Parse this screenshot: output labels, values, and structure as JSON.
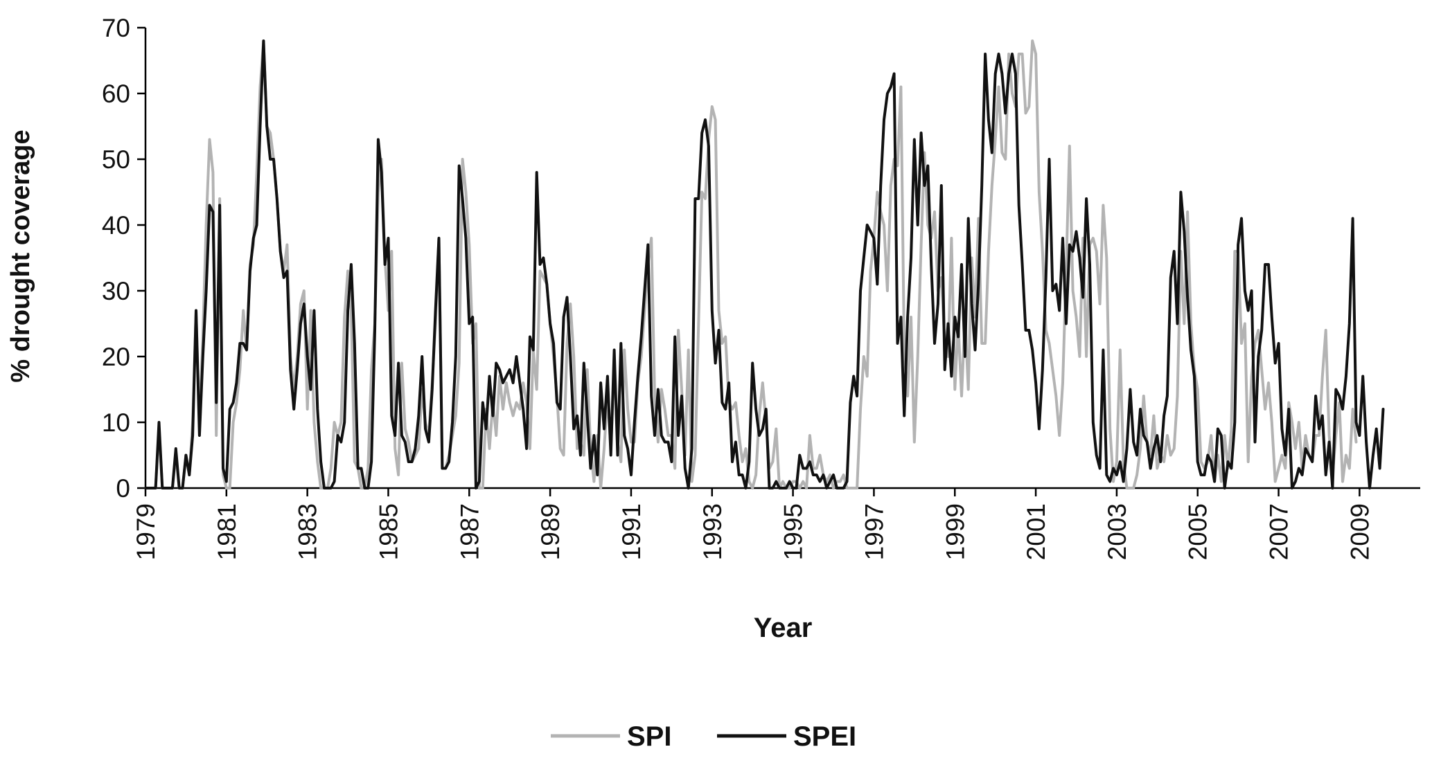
{
  "chart_data": {
    "type": "line",
    "title": "",
    "xlabel": "Year",
    "ylabel": "% drought coverage",
    "xlim": [
      1979,
      2010.5
    ],
    "ylim": [
      0,
      70
    ],
    "y_ticks": [
      "0",
      "10",
      "20",
      "30",
      "40",
      "50",
      "60",
      "70"
    ],
    "x_ticks": [
      "1979",
      "1981",
      "1983",
      "1985",
      "1987",
      "1989",
      "1991",
      "1993",
      "1995",
      "1997",
      "1999",
      "2001",
      "2003",
      "2005",
      "2007",
      "2009"
    ],
    "grid": false,
    "legend_position": "bottom-center",
    "x_step": 0.0833333,
    "series": [
      {
        "name": "SPI",
        "color": "#b3b3b3",
        "values": [
          0,
          0,
          0,
          0,
          9,
          0,
          0,
          0,
          0,
          5,
          0,
          0,
          5,
          2,
          10,
          27,
          10,
          23,
          40,
          53,
          48,
          8,
          44,
          2,
          0,
          0,
          10,
          13,
          18,
          27,
          21,
          34,
          37,
          48,
          61,
          68,
          55,
          54,
          50,
          44,
          36,
          33,
          37,
          20,
          15,
          20,
          28,
          30,
          12,
          27,
          10,
          4,
          0,
          0,
          0,
          3,
          10,
          8,
          10,
          26,
          33,
          27,
          4,
          3,
          0,
          0,
          3,
          18,
          25,
          45,
          50,
          35,
          27,
          36,
          6,
          2,
          19,
          9,
          7,
          4,
          5,
          6,
          15,
          10,
          8,
          16,
          25,
          38,
          3,
          3,
          5,
          8,
          11,
          19,
          50,
          45,
          37,
          22,
          25,
          0,
          0,
          12,
          6,
          13,
          8,
          17,
          12,
          16,
          13,
          11,
          13,
          12,
          16,
          13,
          6,
          21,
          15,
          33,
          32,
          31,
          25,
          20,
          14,
          6,
          5,
          22,
          28,
          20,
          6,
          7,
          5,
          18,
          6,
          1,
          8,
          0,
          6,
          14,
          6,
          19,
          7,
          4,
          21,
          12,
          7,
          7,
          16,
          20,
          27,
          34,
          38,
          14,
          7,
          15,
          12,
          8,
          8,
          3,
          24,
          15,
          5,
          21,
          1,
          5,
          25,
          45,
          44,
          53,
          58,
          56,
          27,
          22,
          23,
          13,
          12,
          13,
          8,
          4,
          6,
          1,
          0,
          2,
          11,
          16,
          10,
          3,
          4,
          9,
          0,
          1,
          0,
          0,
          1,
          1,
          0,
          1,
          0,
          8,
          3,
          3,
          5,
          2,
          1,
          2,
          0,
          1,
          1,
          2,
          0,
          0,
          0,
          0,
          12,
          20,
          17,
          33,
          38,
          45,
          42,
          40,
          30,
          46,
          50,
          49,
          61,
          21,
          14,
          26,
          7,
          20,
          37,
          51,
          40,
          38,
          42,
          30,
          32,
          22,
          20,
          38,
          15,
          25,
          14,
          26,
          15,
          35,
          26,
          41,
          22,
          22,
          36,
          46,
          53,
          61,
          51,
          50,
          66,
          60,
          58,
          66,
          66,
          57,
          58,
          68,
          66,
          45,
          36,
          24,
          22,
          18,
          14,
          8,
          16,
          33,
          52,
          30,
          26,
          20,
          38,
          20,
          37,
          38,
          36,
          28,
          43,
          35,
          9,
          1,
          4,
          21,
          4,
          0,
          0,
          0,
          2,
          6,
          14,
          7,
          5,
          11,
          3,
          5,
          4,
          8,
          5,
          6,
          14,
          36,
          25,
          42,
          25,
          18,
          15,
          4,
          3,
          4,
          8,
          1,
          5,
          1,
          8,
          3,
          9,
          36,
          36,
          22,
          25,
          4,
          17,
          22,
          24,
          18,
          12,
          16,
          10,
          1,
          3,
          5,
          3,
          13,
          10,
          6,
          10,
          3,
          8,
          5,
          4,
          8,
          8,
          17,
          24,
          8,
          2,
          8,
          13,
          1,
          5,
          3,
          12,
          7
        ],
        "line_width": 4
      },
      {
        "name": "SPEI",
        "color": "#111111",
        "values": [
          0,
          0,
          0,
          0,
          10,
          0,
          0,
          0,
          0,
          6,
          0,
          0,
          5,
          2,
          8,
          27,
          8,
          20,
          30,
          43,
          42,
          13,
          43,
          3,
          1,
          12,
          13,
          16,
          22,
          22,
          21,
          33,
          38,
          40,
          55,
          68,
          55,
          50,
          50,
          44,
          36,
          32,
          33,
          18,
          12,
          18,
          25,
          28,
          20,
          15,
          27,
          12,
          4,
          0,
          0,
          0,
          1,
          8,
          7,
          10,
          27,
          34,
          22,
          3,
          3,
          0,
          0,
          4,
          24,
          53,
          48,
          34,
          38,
          11,
          8,
          19,
          8,
          7,
          4,
          4,
          6,
          11,
          20,
          9,
          7,
          15,
          27,
          38,
          3,
          3,
          4,
          10,
          20,
          49,
          44,
          38,
          25,
          26,
          0,
          1,
          13,
          9,
          17,
          11,
          19,
          18,
          16,
          17,
          18,
          16,
          20,
          16,
          12,
          6,
          23,
          21,
          48,
          34,
          35,
          31,
          25,
          22,
          13,
          12,
          26,
          29,
          20,
          9,
          11,
          5,
          19,
          11,
          3,
          8,
          2,
          16,
          9,
          17,
          5,
          21,
          5,
          22,
          8,
          6,
          2,
          10,
          17,
          23,
          30,
          37,
          14,
          8,
          15,
          8,
          7,
          7,
          4,
          23,
          8,
          14,
          3,
          0,
          6,
          44,
          44,
          54,
          56,
          52,
          27,
          19,
          24,
          13,
          12,
          16,
          4,
          7,
          2,
          2,
          0,
          4,
          19,
          12,
          8,
          9,
          12,
          0,
          0,
          1,
          0,
          0,
          0,
          1,
          0,
          0,
          5,
          3,
          3,
          4,
          2,
          2,
          1,
          2,
          0,
          1,
          2,
          0,
          0,
          0,
          1,
          13,
          17,
          14,
          30,
          35,
          40,
          39,
          38,
          31,
          46,
          56,
          60,
          61,
          63,
          22,
          26,
          11,
          26,
          35,
          53,
          40,
          54,
          46,
          49,
          34,
          22,
          28,
          46,
          18,
          25,
          17,
          26,
          23,
          34,
          20,
          41,
          28,
          21,
          31,
          46,
          66,
          56,
          51,
          63,
          66,
          63,
          57,
          63,
          66,
          63,
          43,
          34,
          24,
          24,
          21,
          16,
          9,
          18,
          32,
          50,
          30,
          31,
          27,
          38,
          25,
          37,
          36,
          39,
          35,
          29,
          44,
          34,
          10,
          5,
          3,
          21,
          2,
          1,
          3,
          2,
          4,
          1,
          6,
          15,
          7,
          5,
          12,
          8,
          7,
          3,
          6,
          8,
          4,
          11,
          14,
          32,
          36,
          25,
          45,
          39,
          29,
          21,
          17,
          4,
          2,
          2,
          5,
          4,
          1,
          9,
          8,
          0,
          4,
          3,
          10,
          37,
          41,
          30,
          27,
          30,
          7,
          20,
          24,
          34,
          34,
          26,
          19,
          22,
          9,
          5,
          12,
          0,
          1,
          3,
          2,
          6,
          5,
          4,
          14,
          9,
          11,
          2,
          7,
          0,
          15,
          14,
          12,
          17,
          25,
          41,
          10,
          8,
          17,
          7,
          0,
          5,
          9,
          3,
          12
        ]
      }
    ]
  }
}
